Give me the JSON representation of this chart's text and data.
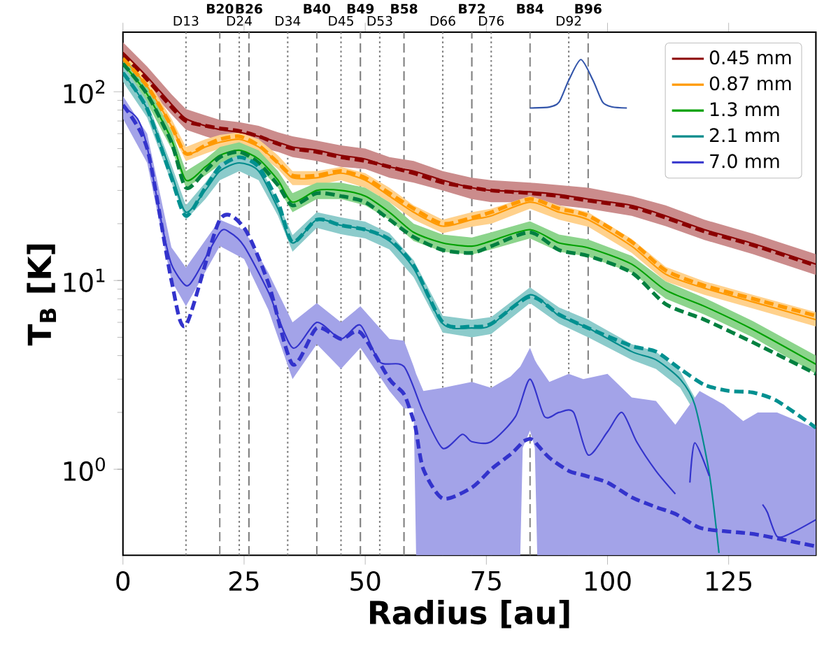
{
  "chart_data": {
    "type": "line",
    "xlabel": "Radius [au]",
    "ylabel": "**T$_{B}$ [K]**",
    "xlim": [
      0,
      143
    ],
    "ylim": [
      0.35,
      207
    ],
    "log": "y",
    "legend": "top right",
    "xticks": [
      0,
      25,
      50,
      75,
      100,
      125
    ],
    "yticks": [
      {
        "value": 1,
        "label": "10$^{0}$"
      },
      {
        "value": 10,
        "label": "10$^{1}$"
      },
      {
        "value": 100,
        "label": "10$^{2}$"
      }
    ],
    "series": [
      {
        "name": "0.45 mm",
        "color": "#8b0000",
        "line_style": "solid",
        "x": [
          0,
          5,
          10,
          13,
          17,
          20,
          24,
          28,
          32,
          35,
          40,
          45,
          50,
          55,
          60,
          66,
          72,
          76,
          84,
          90,
          96,
          105,
          112,
          120,
          130,
          143
        ],
        "values": [
          162,
          120,
          86,
          72,
          66,
          63,
          61,
          58,
          54,
          51,
          49,
          46,
          44,
          40,
          38,
          34,
          31,
          30,
          29.5,
          28.5,
          27,
          25,
          22,
          18.6,
          15.7,
          12.2
        ],
        "lower": [
          143,
          106,
          76,
          63,
          58,
          55,
          54,
          51,
          48,
          45,
          43,
          40,
          39,
          35,
          33,
          30,
          27,
          26,
          26,
          25,
          24,
          22,
          19.4,
          16.4,
          13.8,
          10.7
        ],
        "upper": [
          183,
          136,
          97,
          81,
          75,
          71,
          69,
          66,
          61,
          58,
          55,
          52,
          50,
          45,
          43,
          38,
          35,
          34,
          33,
          32,
          31,
          28,
          25,
          21,
          17.7,
          13.8
        ]
      },
      {
        "name": "0.87 mm",
        "color": "#ff9900",
        "line_style": "solid",
        "x": [
          0,
          5,
          10,
          13,
          17,
          20,
          24,
          28,
          32,
          35,
          40,
          45,
          50,
          55,
          60,
          66,
          72,
          76,
          84,
          90,
          96,
          105,
          112,
          120,
          130,
          143
        ],
        "values": [
          150,
          107,
          66,
          47,
          51,
          54,
          56,
          51,
          42,
          35,
          35,
          37,
          34,
          28,
          23,
          19.4,
          21,
          22,
          26,
          23,
          21,
          15.2,
          10.8,
          9.1,
          7.7,
          6.2
        ],
        "lower": [
          138,
          98,
          61,
          43,
          47,
          50,
          52,
          47,
          39,
          32,
          32,
          34,
          31,
          26,
          21,
          17.8,
          19.3,
          20,
          24,
          21,
          19.3,
          14,
          9.9,
          8.4,
          7.1,
          5.7
        ],
        "upper": [
          164,
          117,
          72,
          51,
          56,
          59,
          61,
          56,
          46,
          38,
          38,
          40,
          37,
          31,
          25,
          21,
          23,
          24,
          28,
          25,
          23,
          16.6,
          11.8,
          9.9,
          8.4,
          6.8
        ]
      },
      {
        "name": "1.3 mm",
        "color": "#00a000",
        "line_style": "solid",
        "x": [
          0,
          5,
          10,
          13,
          17,
          20,
          24,
          28,
          32,
          35,
          40,
          45,
          50,
          55,
          60,
          66,
          72,
          76,
          84,
          90,
          96,
          105,
          112,
          120,
          130,
          143
        ],
        "values": [
          141,
          97,
          56,
          34,
          40,
          46,
          49,
          44,
          34,
          26,
          30,
          30,
          28,
          23,
          18,
          15.8,
          15.2,
          16.2,
          18.6,
          15.8,
          14.9,
          12.2,
          8.9,
          7.3,
          5.5,
          3.6
        ],
        "lower": [
          127,
          87,
          50,
          31,
          36,
          41,
          44,
          40,
          31,
          23,
          27,
          27,
          25,
          21,
          16.2,
          14.2,
          13.7,
          14.6,
          16.7,
          14.2,
          13.4,
          11,
          8,
          6.6,
          5,
          3.2
        ],
        "upper": [
          157,
          108,
          62,
          38,
          44,
          51,
          54,
          49,
          38,
          29,
          33,
          33,
          31,
          26,
          20,
          17.5,
          16.9,
          18,
          20.6,
          17.5,
          16.5,
          13.5,
          9.9,
          8.1,
          6.1,
          4
        ]
      },
      {
        "name": "2.1 mm",
        "color": "#008b8b",
        "line_style": "solid",
        "x": [
          0,
          5,
          10,
          13,
          17,
          20,
          24,
          28,
          32,
          35,
          40,
          45,
          50,
          55,
          60,
          66,
          72,
          76,
          84,
          90,
          96,
          105,
          110,
          115,
          118,
          121,
          123
        ],
        "values": [
          126,
          81,
          37,
          23,
          30,
          38,
          42,
          38,
          24,
          15.8,
          21,
          19.6,
          18.6,
          16.2,
          11.6,
          5.9,
          5.6,
          5.8,
          8.4,
          6.5,
          5.6,
          4.2,
          3.8,
          3.0,
          2.2,
          0.95,
          0.36
        ],
        "lower": [
          113,
          73,
          33,
          21,
          27,
          34,
          38,
          34,
          22,
          14.2,
          19,
          17.6,
          16.7,
          14.6,
          10.4,
          5.3,
          5,
          5.2,
          7.6,
          5.9,
          5,
          3.8,
          3.4,
          2.7,
          2.0,
          null,
          null
        ],
        "upper": [
          139,
          89,
          41,
          25,
          33,
          42,
          46,
          42,
          26,
          17.4,
          23,
          21.6,
          20.5,
          17.8,
          12.8,
          6.5,
          6.2,
          6.4,
          9.2,
          7.2,
          6.2,
          4.6,
          4.2,
          3.3,
          2.4,
          null,
          null
        ]
      },
      {
        "name": "7.0 mm",
        "color": "#3333cc",
        "line_style": "solid",
        "x": [
          0,
          3,
          5,
          8,
          10,
          13,
          15,
          20,
          22,
          25,
          30,
          35,
          40,
          45,
          49,
          53,
          58,
          62,
          66,
          70,
          72,
          76,
          81,
          84,
          87,
          90,
          93,
          96,
          100,
          103,
          106,
          110,
          114,
          115,
          116,
          116.5,
          117,
          118,
          121,
          122.5,
          123,
          131.5,
          132,
          133,
          135,
          138,
          143
        ],
        "values": [
          83,
          72,
          51,
          20,
          12.2,
          9.4,
          10.6,
          18,
          18,
          15.2,
          8.7,
          4.4,
          6.0,
          4.9,
          5.8,
          3.7,
          3.5,
          2.0,
          1.29,
          1.53,
          1.4,
          1.4,
          1.9,
          3.0,
          1.9,
          2.0,
          2.0,
          1.19,
          1.58,
          2.0,
          1.4,
          0.98,
          0.74,
          null,
          null,
          null,
          0.85,
          1.38,
          0.92,
          null,
          null,
          null,
          0.65,
          0.59,
          0.44,
          0.46,
          0.54
        ]
      },
      {
        "color": "#8b0000",
        "line_style": "dashed",
        "x": [
          0,
          5,
          10,
          13,
          17,
          20,
          24,
          28,
          32,
          35,
          40,
          45,
          50,
          55,
          60,
          66,
          72,
          76,
          84,
          90,
          96,
          105,
          112,
          120,
          130,
          143
        ],
        "values": [
          158,
          116,
          83,
          70,
          66,
          64,
          62,
          58,
          53,
          50,
          48,
          45,
          43,
          40,
          37,
          33,
          31,
          30,
          29,
          28,
          26.5,
          24.5,
          21.5,
          18.2,
          15.4,
          12
        ]
      },
      {
        "color": "#ff9900",
        "line_style": "dashed",
        "x": [
          0,
          5,
          10,
          13,
          17,
          20,
          24,
          28,
          32,
          35,
          40,
          45,
          50,
          55,
          60,
          66,
          72,
          76,
          84,
          90,
          96,
          105,
          112,
          120,
          130,
          143
        ],
        "values": [
          150,
          107,
          66,
          47,
          52,
          56,
          58,
          52,
          42,
          36,
          36,
          38,
          35,
          29,
          24,
          20,
          21.5,
          23,
          27,
          24,
          22,
          16,
          11.3,
          9.4,
          8,
          6.5
        ]
      },
      {
        "color": "#008040",
        "line_style": "dashed",
        "x": [
          0,
          5,
          10,
          13,
          17,
          20,
          24,
          28,
          32,
          35,
          40,
          45,
          50,
          55,
          60,
          66,
          72,
          76,
          84,
          90,
          96,
          105,
          112,
          120,
          130,
          143
        ],
        "values": [
          141,
          97,
          54,
          31,
          38,
          45,
          48,
          42,
          32,
          25,
          29,
          28,
          26,
          21,
          17,
          14.5,
          14,
          15.2,
          18,
          14.5,
          13.5,
          11,
          7.5,
          6.2,
          4.7,
          3.2
        ]
      },
      {
        "color": "#009090",
        "line_style": "dashed",
        "x": [
          0,
          5,
          10,
          13,
          17,
          20,
          24,
          28,
          32,
          35,
          40,
          45,
          50,
          55,
          60,
          66,
          72,
          76,
          84,
          90,
          96,
          105,
          110,
          115,
          120,
          125,
          130,
          135,
          143
        ],
        "values": [
          126,
          81,
          35,
          22,
          31,
          40,
          45,
          40,
          26,
          16,
          21,
          19.6,
          18.6,
          16.5,
          12,
          6,
          5.7,
          5.9,
          8.2,
          6.6,
          5.6,
          4.5,
          4.2,
          3.4,
          2.8,
          2.6,
          2.55,
          2.3,
          1.66
        ]
      },
      {
        "color": "#3333cc",
        "line_style": "dashed",
        "x": [
          0,
          5,
          10,
          13,
          20,
          25,
          30,
          35,
          40,
          45,
          49,
          55,
          58,
          60,
          60.5,
          62,
          66,
          72,
          76,
          80,
          82,
          82.5,
          84,
          85,
          85.5,
          88,
          92,
          95,
          100,
          105,
          110,
          114,
          119,
          124,
          128,
          131,
          135,
          143
        ],
        "values": [
          85,
          50,
          10,
          5.8,
          21,
          19,
          9.7,
          3.6,
          5.6,
          4.9,
          5.3,
          3.0,
          2.5,
          1.8,
          1.6,
          1.0,
          0.7,
          0.8,
          1.0,
          1.2,
          1.35,
          1.4,
          1.45,
          1.4,
          1.35,
          1.15,
          0.98,
          0.93,
          0.85,
          0.71,
          0.63,
          0.58,
          0.49,
          0.47,
          0.46,
          0.45,
          0.43,
          0.39
        ],
        "lower": [
          72,
          42,
          10,
          7.3,
          15.2,
          13,
          7,
          3.0,
          4.6,
          3.4,
          4.4,
          2.6,
          2.1,
          2.1,
          0.35,
          0.35,
          0.35,
          0.35,
          0.35,
          0.35,
          0.35,
          1.3,
          1.6,
          1.3,
          0.35,
          0.35,
          0.35,
          0.35,
          0.35,
          0.35,
          0.35,
          0.35,
          0.35,
          0.35,
          0.35,
          0.35,
          0.35,
          0.35
        ],
        "upper": [
          95,
          60,
          15,
          11.7,
          21,
          18.5,
          11,
          6.0,
          7.6,
          6.0,
          7.3,
          4.9,
          4.8,
          3.5,
          3.2,
          2.6,
          2.7,
          2.9,
          2.7,
          3.1,
          3.5,
          3.7,
          4.4,
          3.8,
          3.6,
          2.9,
          3.2,
          3.0,
          3.2,
          2.4,
          2.3,
          1.72,
          2.6,
          2.2,
          1.8,
          2.0,
          2.0,
          1.64
        ]
      },
      {
        "color": "#3355aa",
        "line_style": "solid",
        "x": [
          84,
          88,
          90,
          92,
          94.5,
          97,
          99,
          101,
          104
        ],
        "values": [
          82,
          83,
          88,
          115,
          148,
          115,
          88,
          83,
          82
        ]
      }
    ],
    "ref_lines": [
      {
        "axis": "x",
        "value": 13,
        "label": "D13",
        "line_style": "dotted",
        "color": "#808080"
      },
      {
        "axis": "x",
        "value": 20,
        "label": "B20",
        "line_style": "dashed",
        "color": "#808080"
      },
      {
        "axis": "x",
        "value": 24,
        "label": "D24",
        "line_style": "dotted",
        "color": "#808080"
      },
      {
        "axis": "x",
        "value": 26,
        "label": "B26",
        "line_style": "dashed",
        "color": "#808080"
      },
      {
        "axis": "x",
        "value": 34,
        "label": "D34",
        "line_style": "dotted",
        "color": "#808080"
      },
      {
        "axis": "x",
        "value": 40,
        "label": "B40",
        "line_style": "dashed",
        "color": "#808080"
      },
      {
        "axis": "x",
        "value": 45,
        "label": "D45",
        "line_style": "dotted",
        "color": "#808080"
      },
      {
        "axis": "x",
        "value": 49,
        "label": "B49",
        "line_style": "dashed",
        "color": "#808080"
      },
      {
        "axis": "x",
        "value": 53,
        "label": "D53",
        "line_style": "dotted",
        "color": "#808080"
      },
      {
        "axis": "x",
        "value": 58,
        "label": "B58",
        "line_style": "dashed",
        "color": "#808080"
      },
      {
        "axis": "x",
        "value": 66,
        "label": "D66",
        "line_style": "dotted",
        "color": "#808080"
      },
      {
        "axis": "x",
        "value": 72,
        "label": "B72",
        "line_style": "dashed",
        "color": "#808080"
      },
      {
        "axis": "x",
        "value": 76,
        "label": "D76",
        "line_style": "dotted",
        "color": "#808080"
      },
      {
        "axis": "x",
        "value": 84,
        "label": "B84",
        "line_style": "dashed",
        "color": "#808080"
      },
      {
        "axis": "x",
        "value": 92,
        "label": "D92",
        "line_style": "dotted",
        "color": "#808080"
      },
      {
        "axis": "x",
        "value": 96,
        "label": "B96",
        "line_style": "dashed",
        "color": "#808080"
      }
    ]
  }
}
